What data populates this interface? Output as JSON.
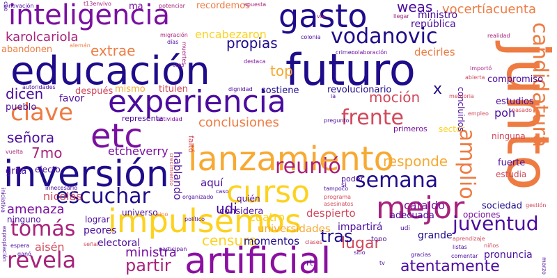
{
  "background": "#ffffff",
  "palette": [
    "#1f0c8a",
    "#4b0c9e",
    "#7a10a0",
    "#a8227a",
    "#d1495b",
    "#ee7b42",
    "#f7a932",
    "#fcd21f"
  ],
  "words": [
    {
      "text": "educación",
      "color": "#1f0c8a",
      "orientation": "horizontal"
    },
    {
      "text": "futuro",
      "color": "#1f0c8a",
      "orientation": "horizontal"
    },
    {
      "text": "junto",
      "color": "#ee7b42",
      "orientation": "vertical"
    },
    {
      "text": "inteligencia",
      "color": "#7a10a0",
      "orientation": "horizontal"
    },
    {
      "text": "gasto",
      "color": "#1f0c8a",
      "orientation": "horizontal"
    },
    {
      "text": "experiencia",
      "color": "#4b0c9e",
      "orientation": "horizontal"
    },
    {
      "text": "artificial",
      "color": "#8b10a0",
      "orientation": "horizontal"
    },
    {
      "text": "inversión",
      "color": "#1f0c8a",
      "orientation": "horizontal"
    },
    {
      "text": "lanzamiento",
      "color": "#f7a932",
      "orientation": "horizontal"
    },
    {
      "text": "impulsemos",
      "color": "#fcd21f",
      "orientation": "horizontal"
    },
    {
      "text": "curso",
      "color": "#fcd21f",
      "orientation": "horizontal"
    },
    {
      "text": "etc",
      "color": "#7a10a0",
      "orientation": "horizontal"
    },
    {
      "text": "mejor",
      "color": "#a8227a",
      "orientation": "horizontal"
    },
    {
      "text": "vodanovic",
      "color": "#1f0c8a",
      "orientation": "horizontal"
    },
    {
      "text": "candidatura",
      "color": "#ee7b42",
      "orientation": "vertical"
    },
    {
      "text": "amplio",
      "color": "#ee7b42",
      "orientation": "vertical"
    },
    {
      "text": "clave",
      "color": "#ee7b42",
      "orientation": "horizontal"
    },
    {
      "text": "revela",
      "color": "#a8227a",
      "orientation": "horizontal"
    },
    {
      "text": "tomás",
      "color": "#a8227a",
      "orientation": "horizontal"
    },
    {
      "text": "semana",
      "color": "#1f0c8a",
      "orientation": "horizontal"
    },
    {
      "text": "escuchar",
      "color": "#1f0c8a",
      "orientation": "horizontal"
    },
    {
      "text": "frente",
      "color": "#d1495b",
      "orientation": "horizontal"
    },
    {
      "text": "reunió",
      "color": "#a8227a",
      "orientation": "horizontal"
    },
    {
      "text": "juventud",
      "color": "#4b0c9e",
      "orientation": "horizontal"
    },
    {
      "text": "atentamente",
      "color": "#4b0c9e",
      "orientation": "horizontal"
    },
    {
      "text": "partir",
      "color": "#a8227a",
      "orientation": "horizontal"
    },
    {
      "text": "lugar",
      "color": "#d1495b",
      "orientation": "horizontal"
    },
    {
      "text": "tras",
      "color": "#1f0c8a",
      "orientation": "horizontal"
    },
    {
      "text": "karolcariola",
      "color": "#a8227a",
      "orientation": "horizontal"
    },
    {
      "text": "extrae",
      "color": "#ee7b42",
      "orientation": "horizontal"
    },
    {
      "text": "propias",
      "color": "#1f0c8a",
      "orientation": "horizontal"
    },
    {
      "text": "weas",
      "color": "#4b0c9e",
      "orientation": "horizontal"
    },
    {
      "text": "vocertíacuenta",
      "color": "#ee7b42",
      "orientation": "horizontal"
    },
    {
      "text": "conclusiones",
      "color": "#ee7b42",
      "orientation": "horizontal"
    },
    {
      "text": "responde",
      "color": "#f7a932",
      "orientation": "horizontal"
    },
    {
      "text": "moción",
      "color": "#d1495b",
      "orientation": "horizontal"
    },
    {
      "text": "dicen",
      "color": "#4b0c9e",
      "orientation": "horizontal"
    },
    {
      "text": "top",
      "color": "#f7a932",
      "orientation": "horizontal"
    },
    {
      "text": "7mo",
      "color": "#a8227a",
      "orientation": "horizontal"
    },
    {
      "text": "señora",
      "color": "#4b0c9e",
      "orientation": "horizontal"
    },
    {
      "text": "amenaza",
      "color": "#7a10a0",
      "orientation": "horizontal"
    },
    {
      "text": "etcheverry",
      "color": "#7a10a0",
      "orientation": "horizontal"
    },
    {
      "text": "udi",
      "color": "#4b0c9e",
      "orientation": "horizontal"
    },
    {
      "text": "cataldo",
      "color": "#7a10a0",
      "orientation": "horizontal"
    },
    {
      "text": "censura",
      "color": "#fcd21f",
      "orientation": "horizontal"
    },
    {
      "text": "ministra",
      "color": "#7a10a0",
      "orientation": "horizontal"
    },
    {
      "text": "x",
      "color": "#1f0c8a",
      "orientation": "horizontal"
    },
    {
      "text": "encabezaron",
      "color": "#fcd21f",
      "orientation": "horizontal"
    },
    {
      "text": "república",
      "color": "#4b0c9e",
      "orientation": "horizontal"
    },
    {
      "text": "ministro",
      "color": "#4b0c9e",
      "orientation": "horizontal"
    },
    {
      "text": "revolucionario",
      "color": "#1f0c8a",
      "orientation": "horizontal"
    },
    {
      "text": "sostiene",
      "color": "#1f0c8a",
      "orientation": "horizontal"
    },
    {
      "text": "nicolás",
      "color": "#d1495b",
      "orientation": "horizontal"
    },
    {
      "text": "aisén",
      "color": "#d1495b",
      "orientation": "horizontal"
    },
    {
      "text": "peores",
      "color": "#4b0c9e",
      "orientation": "horizontal"
    },
    {
      "text": "momentos",
      "color": "#1f0c8a",
      "orientation": "horizontal"
    },
    {
      "text": "grande",
      "color": "#1f0c8a",
      "orientation": "horizontal"
    },
    {
      "text": "impartirá",
      "color": "#4b0c9e",
      "orientation": "horizontal"
    },
    {
      "text": "despierto",
      "color": "#d1495b",
      "orientation": "horizontal"
    },
    {
      "text": "universidades",
      "color": "#f7a932",
      "orientation": "horizontal"
    },
    {
      "text": "pronuncia",
      "color": "#4b0c9e",
      "orientation": "horizontal"
    },
    {
      "text": "sociedad",
      "color": "#1f0c8a",
      "orientation": "horizontal"
    },
    {
      "text": "opciones",
      "color": "#7a10a0",
      "orientation": "horizontal"
    },
    {
      "text": "electoral",
      "color": "#4b0c9e",
      "orientation": "horizontal"
    },
    {
      "text": "cuatro",
      "color": "#fcd21f",
      "orientation": "horizontal"
    },
    {
      "text": "poh",
      "color": "#4b0c9e",
      "orientation": "horizontal"
    },
    {
      "text": "estudios",
      "color": "#4b0c9e",
      "orientation": "horizontal"
    },
    {
      "text": "compromiso",
      "color": "#4b0c9e",
      "orientation": "horizontal"
    },
    {
      "text": "decirles",
      "color": "#ee7b42",
      "orientation": "horizontal"
    },
    {
      "text": "ninguna",
      "color": "#d1495b",
      "orientation": "horizontal"
    },
    {
      "text": "fuerte",
      "color": "#4b0c9e",
      "orientation": "horizontal"
    },
    {
      "text": "estudia",
      "color": "#d1495b",
      "orientation": "horizontal"
    },
    {
      "text": "sector",
      "color": "#fcd21f",
      "orientation": "horizontal"
    },
    {
      "text": "adecuada",
      "color": "#4b0c9e",
      "orientation": "horizontal"
    },
    {
      "text": "considera",
      "color": "#4b0c9e",
      "orientation": "horizontal"
    },
    {
      "text": "universo",
      "color": "#4b0c9e",
      "orientation": "horizontal"
    },
    {
      "text": "ninguno",
      "color": "#4b0c9e",
      "orientation": "horizontal"
    },
    {
      "text": "lograr",
      "color": "#4b0c9e",
      "orientation": "horizontal"
    },
    {
      "text": "favor",
      "color": "#4b0c9e",
      "orientation": "horizontal"
    },
    {
      "text": "pueblo",
      "color": "#4b0c9e",
      "orientation": "horizontal"
    },
    {
      "text": "después",
      "color": "#d1495b",
      "orientation": "horizontal"
    },
    {
      "text": "mismo",
      "color": "#f7a932",
      "orientation": "horizontal"
    },
    {
      "text": "titulen",
      "color": "#d1495b",
      "orientation": "horizontal"
    },
    {
      "text": "representa",
      "color": "#4b0c9e",
      "orientation": "horizontal"
    },
    {
      "text": "electo",
      "color": "#4b0c9e",
      "orientation": "horizontal"
    },
    {
      "text": "grita",
      "color": "#4b0c9e",
      "orientation": "horizontal"
    },
    {
      "text": "hablando",
      "color": "#4b0c9e",
      "orientation": "vertical"
    },
    {
      "text": "aquí",
      "color": "#4b0c9e",
      "orientation": "horizontal"
    },
    {
      "text": "quién",
      "color": "#4b0c9e",
      "orientation": "horizontal"
    },
    {
      "text": "poder",
      "color": "#4b0c9e",
      "orientation": "horizontal"
    },
    {
      "text": "primeros",
      "color": "#7a10a0",
      "orientation": "horizontal"
    },
    {
      "text": "abandonen",
      "color": "#ee7b42",
      "orientation": "horizontal"
    },
    {
      "text": "recordemos",
      "color": "#ee7b42",
      "orientation": "horizontal"
    },
    {
      "text": "ma",
      "color": "#7a10a0",
      "orientation": "horizontal"
    },
    {
      "text": "concluirlos",
      "color": "#4b0c9e",
      "orientation": "vertical"
    },
    {
      "text": "tono",
      "color": "#4b0c9e",
      "orientation": "horizontal"
    },
    {
      "text": "rt",
      "color": "#4b0c9e",
      "orientation": "horizontal"
    },
    {
      "text": "si",
      "color": "#4b0c9e",
      "orientation": "horizontal"
    },
    {
      "text": "udi",
      "color": "#4b0c9e",
      "orientation": "horizontal"
    },
    {
      "text": "innovación",
      "color": "#4b0c9e",
      "orientation": "horizontal"
    },
    {
      "text": "t13envivo",
      "color": "#a8227a",
      "orientation": "horizontal"
    },
    {
      "text": "potenciar",
      "color": "#a8227a",
      "orientation": "horizontal"
    },
    {
      "text": "apuesta",
      "color": "#a8227a",
      "orientation": "horizontal"
    },
    {
      "text": "migración",
      "color": "#a8227a",
      "orientation": "horizontal"
    },
    {
      "text": "días",
      "color": "#4b0c9e",
      "orientation": "horizontal"
    },
    {
      "text": "colonia",
      "color": "#4b0c9e",
      "orientation": "horizontal"
    },
    {
      "text": "crimen",
      "color": "#4b0c9e",
      "orientation": "horizontal"
    },
    {
      "text": "colaboración",
      "color": "#7a10a0",
      "orientation": "horizontal"
    },
    {
      "text": "llegar",
      "color": "#a8227a",
      "orientation": "horizontal"
    },
    {
      "text": "realidad",
      "color": "#a8227a",
      "orientation": "horizontal"
    },
    {
      "text": "importó",
      "color": "#a8227a",
      "orientation": "horizontal"
    },
    {
      "text": "abierta",
      "color": "#d1495b",
      "orientation": "horizontal"
    },
    {
      "text": "memoria",
      "color": "#d1495b",
      "orientation": "horizontal"
    },
    {
      "text": "destaca",
      "color": "#7a10a0",
      "orientation": "horizontal"
    },
    {
      "text": "autoridades",
      "color": "#4b0c9e",
      "orientation": "horizontal"
    },
    {
      "text": "dignidad",
      "color": "#4b0c9e",
      "orientation": "horizontal"
    },
    {
      "text": "actividad",
      "color": "#7a10a0",
      "orientation": "horizontal"
    },
    {
      "text": "pregunto",
      "color": "#4b0c9e",
      "orientation": "horizontal"
    },
    {
      "text": "empleo",
      "color": "#d1495b",
      "orientation": "horizontal"
    },
    {
      "text": "pasado",
      "color": "#d1495b",
      "orientation": "horizontal"
    },
    {
      "text": "vuelta",
      "color": "#a8227a",
      "orientation": "horizontal"
    },
    {
      "text": "innecesario",
      "color": "#4b0c9e",
      "orientation": "horizontal"
    },
    {
      "text": "organizado",
      "color": "#4b0c9e",
      "orientation": "horizontal"
    },
    {
      "text": "caso",
      "color": "#4b0c9e",
      "orientation": "horizontal"
    },
    {
      "text": "tampoco",
      "color": "#4b0c9e",
      "orientation": "horizontal"
    },
    {
      "text": "programa",
      "color": "#d1495b",
      "orientation": "horizontal"
    },
    {
      "text": "asesinatos",
      "color": "#d1495b",
      "orientation": "horizontal"
    },
    {
      "text": "político",
      "color": "#4b0c9e",
      "orientation": "horizontal"
    },
    {
      "text": "sino",
      "color": "#ee7b42",
      "orientation": "horizontal"
    },
    {
      "text": "gestión",
      "color": "#d1495b",
      "orientation": "horizontal"
    },
    {
      "text": "aprendizaje",
      "color": "#d1495b",
      "orientation": "horizontal"
    },
    {
      "text": "expropiación",
      "color": "#4b0c9e",
      "orientation": "horizontal"
    },
    {
      "text": "espera",
      "color": "#4b0c9e",
      "orientation": "horizontal"
    },
    {
      "text": "ganó",
      "color": "#4b0c9e",
      "orientation": "horizontal"
    },
    {
      "text": "señal",
      "color": "#d1495b",
      "orientation": "horizontal"
    },
    {
      "text": "participan",
      "color": "#4b0c9e",
      "orientation": "horizontal"
    },
    {
      "text": "clases",
      "color": "#d1495b",
      "orientation": "horizontal"
    },
    {
      "text": "sitio",
      "color": "#4b0c9e",
      "orientation": "horizontal"
    },
    {
      "text": "listas",
      "color": "#4b0c9e",
      "orientation": "horizontal"
    },
    {
      "text": "niños",
      "color": "#d1495b",
      "orientation": "horizontal"
    },
    {
      "text": "gracias",
      "color": "#4b0c9e",
      "orientation": "horizontal"
    },
    {
      "text": "comentar",
      "color": "#4b0c9e",
      "orientation": "horizontal"
    },
    {
      "text": "marzo",
      "color": "#4b0c9e",
      "orientation": "horizontal"
    },
    {
      "text": "tv",
      "color": "#4b0c9e",
      "orientation": "horizontal"
    },
    {
      "text": "cae",
      "color": "#4b0c9e",
      "orientation": "horizontal"
    },
    {
      "text": "vía",
      "color": "#a8227a",
      "orientation": "horizontal"
    },
    {
      "text": "muertes",
      "color": "#a8227a",
      "orientation": "horizontal"
    },
    {
      "text": "alemán",
      "color": "#ee7b42",
      "orientation": "horizontal"
    },
    {
      "text": "cres",
      "color": "#7a10a0",
      "orientation": "horizontal"
    },
    {
      "text": "crecimiento",
      "color": "#d1495b",
      "orientation": "vertical"
    },
    {
      "text": "faltó",
      "color": "#d1495b",
      "orientation": "vertical"
    },
    {
      "text": "iniciativa",
      "color": "#4b0c9e",
      "orientation": "vertical"
    },
    {
      "text": "ia",
      "color": "#4b0c9e",
      "orientation": "horizontal"
    }
  ]
}
